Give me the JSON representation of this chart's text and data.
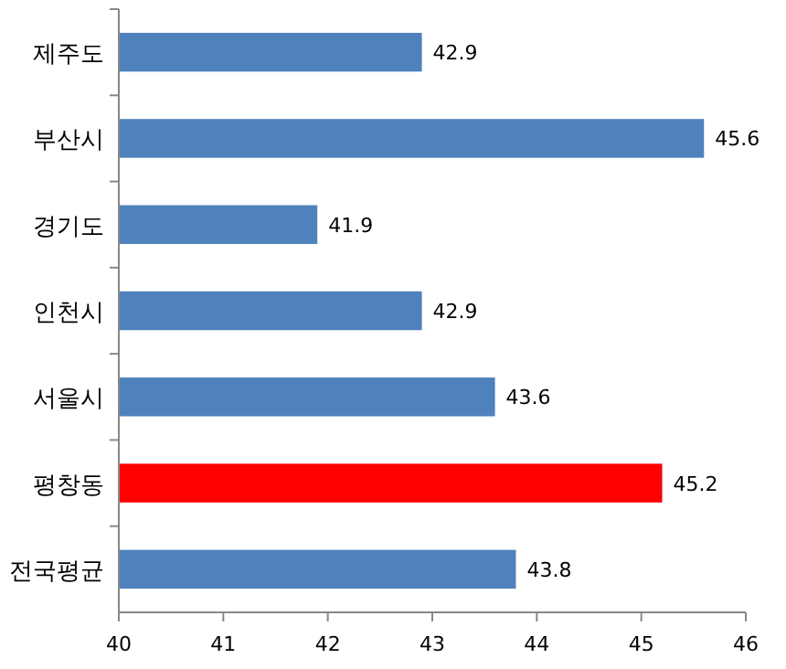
{
  "chart_data": {
    "type": "bar",
    "orientation": "horizontal",
    "categories": [
      "제주도",
      "부산시",
      "경기도",
      "인천시",
      "서울시",
      "평창동",
      "전국평균"
    ],
    "values": [
      42.9,
      45.6,
      41.9,
      42.9,
      43.6,
      45.2,
      43.8
    ],
    "colors": [
      "#4f81bd",
      "#4f81bd",
      "#4f81bd",
      "#4f81bd",
      "#4f81bd",
      "#ff0000",
      "#4f81bd"
    ],
    "xlim": [
      40,
      46
    ],
    "xticks": [
      40,
      41,
      42,
      43,
      44,
      45,
      46
    ],
    "data_labels": true
  }
}
